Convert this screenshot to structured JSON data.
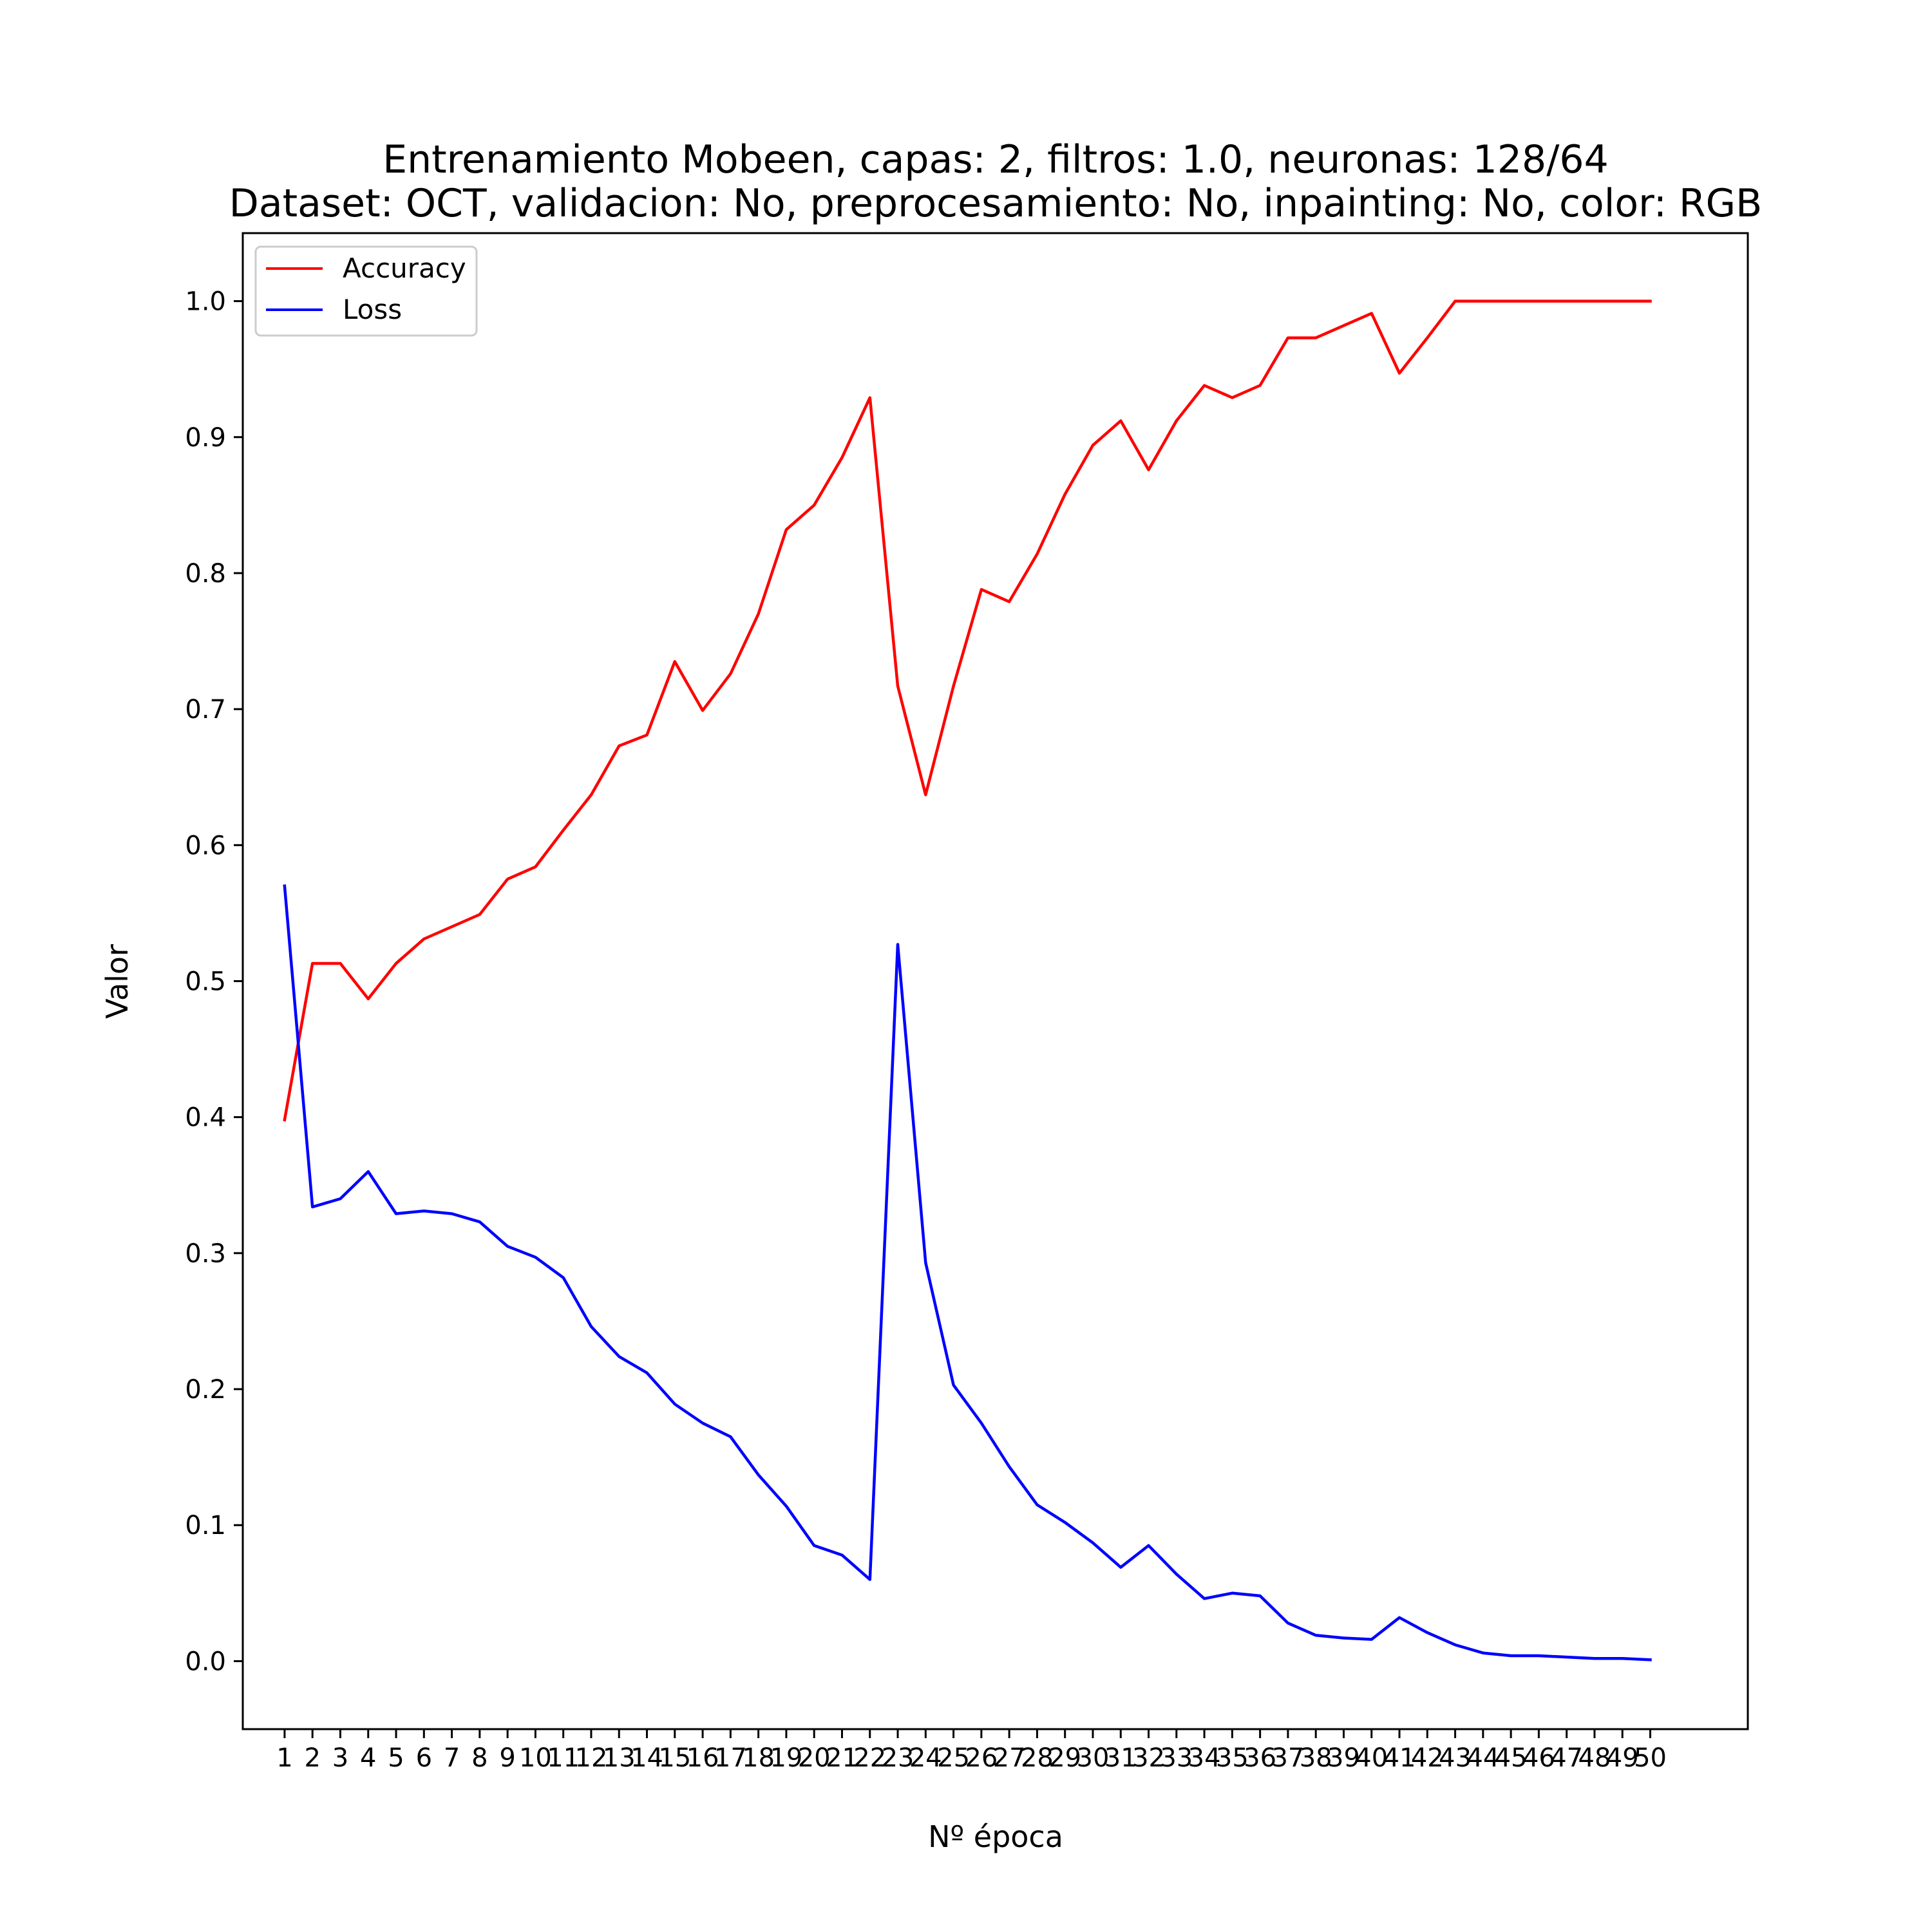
{
  "chart_data": {
    "type": "line",
    "title": "Entrenamiento Mobeen, capas: 2, filtros: 1.0, neuronas: 128/64",
    "subtitle": "Dataset: OCT, validacion: No, preprocesamiento: No, inpainting: No, color: RGB",
    "xlabel": "Nº época",
    "ylabel": "Valor",
    "xlim": [
      -0.5,
      53.5
    ],
    "ylim": [
      -0.05,
      1.05
    ],
    "x": [
      1,
      2,
      3,
      4,
      5,
      6,
      7,
      8,
      9,
      10,
      11,
      12,
      13,
      14,
      15,
      16,
      17,
      18,
      19,
      20,
      21,
      22,
      23,
      24,
      25,
      26,
      27,
      28,
      29,
      30,
      31,
      32,
      33,
      34,
      35,
      36,
      37,
      38,
      39,
      40,
      41,
      42,
      43,
      44,
      45,
      46,
      47,
      48,
      49,
      50
    ],
    "x_ticks": [
      "1",
      "2",
      "3",
      "4",
      "5",
      "6",
      "7",
      "8",
      "9",
      "10",
      "11",
      "12",
      "13",
      "14",
      "15",
      "16",
      "17",
      "18",
      "19",
      "20",
      "21",
      "22",
      "23",
      "24",
      "25",
      "26",
      "27",
      "28",
      "29",
      "30",
      "31",
      "32",
      "33",
      "34",
      "35",
      "36",
      "37",
      "38",
      "39",
      "40",
      "41",
      "42",
      "43",
      "44",
      "45",
      "46",
      "47",
      "48",
      "49",
      "50"
    ],
    "y_ticks": [
      "0.0",
      "0.1",
      "0.2",
      "0.3",
      "0.4",
      "0.5",
      "0.6",
      "0.7",
      "0.8",
      "0.9",
      "1.0"
    ],
    "legend_position": "top-left",
    "grid": false,
    "series": [
      {
        "name": "Accuracy",
        "color": "#ff0000",
        "values": [
          0.398,
          0.513,
          0.513,
          0.487,
          0.513,
          0.531,
          0.54,
          0.549,
          0.575,
          0.584,
          0.611,
          0.637,
          0.673,
          0.681,
          0.735,
          0.699,
          0.726,
          0.77,
          0.832,
          0.85,
          0.885,
          0.929,
          0.717,
          0.637,
          0.717,
          0.788,
          0.779,
          0.814,
          0.858,
          0.894,
          0.912,
          0.876,
          0.912,
          0.938,
          0.929,
          0.938,
          0.973,
          0.973,
          0.982,
          0.991,
          0.947,
          0.973,
          1.0,
          1.0,
          1.0,
          1.0,
          1.0,
          1.0,
          1.0,
          1.0
        ]
      },
      {
        "name": "Loss",
        "color": "#0000ff",
        "values": [
          0.57,
          0.334,
          0.34,
          0.36,
          0.329,
          0.331,
          0.329,
          0.323,
          0.305,
          0.297,
          0.282,
          0.246,
          0.224,
          0.212,
          0.189,
          0.175,
          0.165,
          0.137,
          0.114,
          0.085,
          0.078,
          0.06,
          0.527,
          0.293,
          0.203,
          0.175,
          0.143,
          0.115,
          0.102,
          0.087,
          0.069,
          0.085,
          0.064,
          0.046,
          0.05,
          0.048,
          0.028,
          0.019,
          0.017,
          0.016,
          0.032,
          0.021,
          0.012,
          0.006,
          0.004,
          0.004,
          0.003,
          0.002,
          0.002,
          0.001
        ]
      }
    ]
  }
}
